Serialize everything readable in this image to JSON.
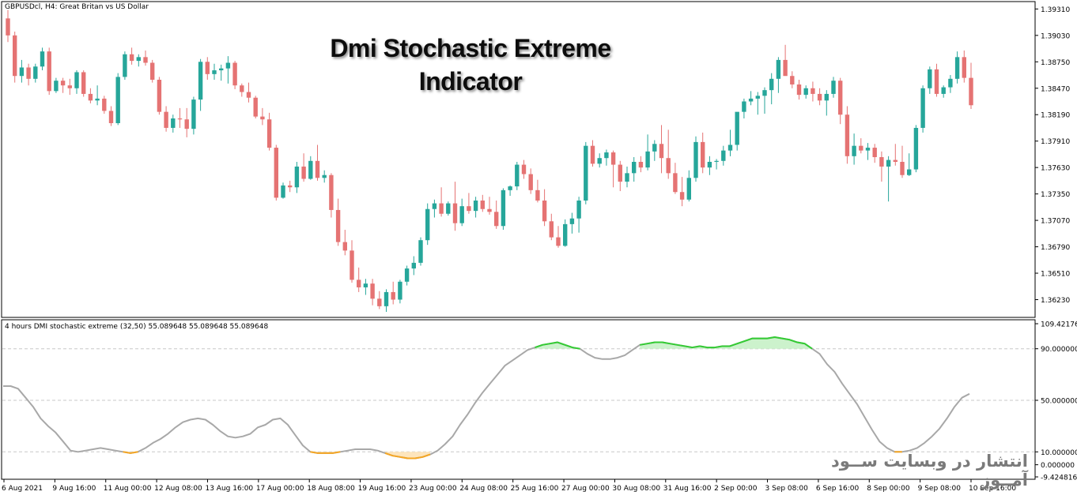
{
  "header": {
    "symbol_label": "GBPUSDcl, H4:  Great Britan vs US Dollar",
    "indicator_label": "4 hours DMI stochastic extreme (32,50) 55.089648 55.089648 55.089648"
  },
  "overlay": {
    "title_line1": "Dmi Stochastic Extreme",
    "title_line2": "Indicator",
    "watermark": "انتشار در وبسایت ســود آمــوز"
  },
  "colors": {
    "bull": "#26a69a",
    "bear": "#e57373",
    "osc_line": "#a8a8a8",
    "overbought": "#33cc33",
    "overbought_fill": "#ccf2cc",
    "oversold": "#f5a623",
    "oversold_fill": "#fde5bd",
    "level_line": "#c8c8c8",
    "frame": "#000000"
  },
  "chart_data": [
    {
      "type": "candlestick",
      "symbol": "GBPUSDcl",
      "timeframe": "H4",
      "ylim": [
        1.3605,
        1.3938
      ],
      "y_ticks": [
        "1.39310",
        "1.39030",
        "1.38750",
        "1.38470",
        "1.38190",
        "1.37910",
        "1.37630",
        "1.37350",
        "1.37070",
        "1.36790",
        "1.36510",
        "1.36230"
      ],
      "x_ticks": [
        "6 Aug 2021",
        "9 Aug 16:00",
        "11 Aug 00:00",
        "12 Aug 08:00",
        "13 Aug 16:00",
        "17 Aug 00:00",
        "18 Aug 08:00",
        "19 Aug 16:00",
        "23 Aug 00:00",
        "24 Aug 08:00",
        "25 Aug 16:00",
        "27 Aug 00:00",
        "30 Aug 08:00",
        "31 Aug 16:00",
        "2 Sep 00:00",
        "3 Sep 08:00",
        "6 Sep 16:00",
        "8 Sep 00:00",
        "9 Sep 08:00",
        "10 Sep 16:00"
      ],
      "ohlc": [
        [
          1.3921,
          1.393,
          1.3896,
          1.3903
        ],
        [
          1.3903,
          1.3907,
          1.3853,
          1.386
        ],
        [
          1.386,
          1.3877,
          1.3853,
          1.3869
        ],
        [
          1.3869,
          1.3873,
          1.385,
          1.3857
        ],
        [
          1.3857,
          1.3873,
          1.3853,
          1.387
        ],
        [
          1.387,
          1.389,
          1.3866,
          1.3886
        ],
        [
          1.3886,
          1.389,
          1.384,
          1.3844
        ],
        [
          1.3844,
          1.3858,
          1.3842,
          1.3855
        ],
        [
          1.3855,
          1.3858,
          1.3842,
          1.385
        ],
        [
          1.385,
          1.3857,
          1.384,
          1.3847
        ],
        [
          1.3847,
          1.3866,
          1.3841,
          1.3864
        ],
        [
          1.3864,
          1.3866,
          1.3838,
          1.3841
        ],
        [
          1.3841,
          1.3847,
          1.3831,
          1.3834
        ],
        [
          1.3834,
          1.385,
          1.3829,
          1.3836
        ],
        [
          1.3836,
          1.3839,
          1.382,
          1.3823
        ],
        [
          1.3823,
          1.3828,
          1.3807,
          1.381
        ],
        [
          1.381,
          1.3863,
          1.3808,
          1.3859
        ],
        [
          1.3859,
          1.3886,
          1.3856,
          1.3883
        ],
        [
          1.3883,
          1.389,
          1.3872,
          1.3876
        ],
        [
          1.3876,
          1.3883,
          1.387,
          1.388
        ],
        [
          1.388,
          1.3887,
          1.3871,
          1.3874
        ],
        [
          1.3874,
          1.3877,
          1.3853,
          1.3856
        ],
        [
          1.3856,
          1.3859,
          1.3819,
          1.3822
        ],
        [
          1.3822,
          1.3828,
          1.3801,
          1.3805
        ],
        [
          1.3805,
          1.3819,
          1.38,
          1.3815
        ],
        [
          1.3815,
          1.3826,
          1.3805,
          1.3814
        ],
        [
          1.3814,
          1.3826,
          1.3795,
          1.3804
        ],
        [
          1.3804,
          1.3838,
          1.3798,
          1.3835
        ],
        [
          1.3835,
          1.3878,
          1.3823,
          1.3875
        ],
        [
          1.3875,
          1.388,
          1.3856,
          1.3862
        ],
        [
          1.3862,
          1.3873,
          1.3856,
          1.3866
        ],
        [
          1.3866,
          1.3872,
          1.3855,
          1.3868
        ],
        [
          1.3868,
          1.3881,
          1.3852,
          1.3874
        ],
        [
          1.3874,
          1.3876,
          1.3846,
          1.385
        ],
        [
          1.385,
          1.3852,
          1.3838,
          1.3843
        ],
        [
          1.3843,
          1.3853,
          1.3832,
          1.3837
        ],
        [
          1.3837,
          1.3839,
          1.3815,
          1.3817
        ],
        [
          1.3817,
          1.3826,
          1.3808,
          1.3814
        ],
        [
          1.3814,
          1.3821,
          1.3781,
          1.3784
        ],
        [
          1.3784,
          1.3787,
          1.3728,
          1.3731
        ],
        [
          1.3731,
          1.3747,
          1.373,
          1.3744
        ],
        [
          1.3744,
          1.3749,
          1.3737,
          1.3742
        ],
        [
          1.3742,
          1.3769,
          1.3736,
          1.3764
        ],
        [
          1.3764,
          1.3778,
          1.3748,
          1.3751
        ],
        [
          1.3751,
          1.3775,
          1.375,
          1.377
        ],
        [
          1.377,
          1.3787,
          1.3749,
          1.3752
        ],
        [
          1.3752,
          1.376,
          1.3747,
          1.3755
        ],
        [
          1.3755,
          1.3757,
          1.371,
          1.3718
        ],
        [
          1.3718,
          1.373,
          1.368,
          1.3684
        ],
        [
          1.3684,
          1.3697,
          1.367,
          1.3675
        ],
        [
          1.3675,
          1.3686,
          1.3641,
          1.3644
        ],
        [
          1.3644,
          1.3657,
          1.3631,
          1.3636
        ],
        [
          1.3636,
          1.3645,
          1.3628,
          1.364
        ],
        [
          1.364,
          1.3645,
          1.3617,
          1.3624
        ],
        [
          1.3624,
          1.3632,
          1.3613,
          1.3616
        ],
        [
          1.3616,
          1.3634,
          1.361,
          1.3631
        ],
        [
          1.3631,
          1.3642,
          1.3618,
          1.3623
        ],
        [
          1.3623,
          1.3644,
          1.3619,
          1.3642
        ],
        [
          1.3642,
          1.3659,
          1.3638,
          1.3656
        ],
        [
          1.3656,
          1.3669,
          1.3649,
          1.3662
        ],
        [
          1.3662,
          1.3689,
          1.3659,
          1.3686
        ],
        [
          1.3686,
          1.3725,
          1.3681,
          1.3719
        ],
        [
          1.3719,
          1.3729,
          1.371,
          1.3725
        ],
        [
          1.3725,
          1.3742,
          1.3711,
          1.3714
        ],
        [
          1.3714,
          1.3727,
          1.3712,
          1.3725
        ],
        [
          1.3725,
          1.3748,
          1.3696,
          1.3704
        ],
        [
          1.3704,
          1.373,
          1.3701,
          1.3722
        ],
        [
          1.3722,
          1.3736,
          1.3714,
          1.3717
        ],
        [
          1.3717,
          1.3732,
          1.371,
          1.3728
        ],
        [
          1.3728,
          1.3734,
          1.3716,
          1.3719
        ],
        [
          1.3719,
          1.3732,
          1.3713,
          1.3716
        ],
        [
          1.3716,
          1.3728,
          1.3698,
          1.3701
        ],
        [
          1.3701,
          1.3741,
          1.3697,
          1.3739
        ],
        [
          1.3739,
          1.3744,
          1.3733,
          1.3743
        ],
        [
          1.3743,
          1.3769,
          1.3739,
          1.3766
        ],
        [
          1.3766,
          1.3771,
          1.3751,
          1.3756
        ],
        [
          1.3756,
          1.3762,
          1.3735,
          1.3739
        ],
        [
          1.3739,
          1.375,
          1.3726,
          1.3728
        ],
        [
          1.3728,
          1.374,
          1.3701,
          1.3706
        ],
        [
          1.3706,
          1.3714,
          1.3686,
          1.3689
        ],
        [
          1.3689,
          1.3701,
          1.3678,
          1.368
        ],
        [
          1.368,
          1.3708,
          1.3679,
          1.3703
        ],
        [
          1.3703,
          1.3715,
          1.3693,
          1.3709
        ],
        [
          1.3709,
          1.3732,
          1.3694,
          1.3728
        ],
        [
          1.3728,
          1.379,
          1.3724,
          1.3786
        ],
        [
          1.3786,
          1.3792,
          1.3764,
          1.3767
        ],
        [
          1.3767,
          1.3778,
          1.3763,
          1.3773
        ],
        [
          1.3773,
          1.3782,
          1.3765,
          1.3779
        ],
        [
          1.3779,
          1.3781,
          1.3742,
          1.3766
        ],
        [
          1.3766,
          1.377,
          1.3738,
          1.3748
        ],
        [
          1.3748,
          1.3764,
          1.3742,
          1.3757
        ],
        [
          1.3757,
          1.3774,
          1.3748,
          1.3769
        ],
        [
          1.3769,
          1.3775,
          1.3758,
          1.3763
        ],
        [
          1.3763,
          1.3798,
          1.376,
          1.378
        ],
        [
          1.378,
          1.3792,
          1.377,
          1.3788
        ],
        [
          1.3788,
          1.3808,
          1.3757,
          1.3773
        ],
        [
          1.3773,
          1.3803,
          1.3751,
          1.3757
        ],
        [
          1.3757,
          1.3768,
          1.3735,
          1.3737
        ],
        [
          1.3737,
          1.3753,
          1.3722,
          1.3729
        ],
        [
          1.3729,
          1.376,
          1.3727,
          1.3752
        ],
        [
          1.3752,
          1.3796,
          1.3748,
          1.379
        ],
        [
          1.379,
          1.38,
          1.3757,
          1.3763
        ],
        [
          1.3763,
          1.3775,
          1.3755,
          1.3769
        ],
        [
          1.3769,
          1.3772,
          1.3761,
          1.377
        ],
        [
          1.377,
          1.3786,
          1.3765,
          1.3781
        ],
        [
          1.3781,
          1.3803,
          1.3775,
          1.3787
        ],
        [
          1.3787,
          1.382,
          1.3781,
          1.3822
        ],
        [
          1.3822,
          1.3836,
          1.3815,
          1.3833
        ],
        [
          1.3833,
          1.3844,
          1.3829,
          1.3836
        ],
        [
          1.3836,
          1.3843,
          1.3819,
          1.3839
        ],
        [
          1.3839,
          1.3848,
          1.382,
          1.3845
        ],
        [
          1.3845,
          1.3863,
          1.383,
          1.3857
        ],
        [
          1.3857,
          1.388,
          1.3842,
          1.3877
        ],
        [
          1.3877,
          1.3893,
          1.3861,
          1.386
        ],
        [
          1.386,
          1.3865,
          1.3847,
          1.3851
        ],
        [
          1.3851,
          1.3856,
          1.3835,
          1.384
        ],
        [
          1.384,
          1.385,
          1.3836,
          1.3847
        ],
        [
          1.3847,
          1.3854,
          1.3833,
          1.3841
        ],
        [
          1.3841,
          1.3847,
          1.3829,
          1.3834
        ],
        [
          1.3834,
          1.3845,
          1.3818,
          1.3841
        ],
        [
          1.3841,
          1.3859,
          1.3837,
          1.3855
        ],
        [
          1.3855,
          1.3858,
          1.3809,
          1.3819
        ],
        [
          1.3819,
          1.3828,
          1.3767,
          1.3775
        ],
        [
          1.3775,
          1.3799,
          1.3766,
          1.3786
        ],
        [
          1.3786,
          1.3794,
          1.3778,
          1.3781
        ],
        [
          1.3781,
          1.3789,
          1.3771,
          1.3784
        ],
        [
          1.3784,
          1.3788,
          1.3768,
          1.3774
        ],
        [
          1.3774,
          1.378,
          1.3748,
          1.3764
        ],
        [
          1.3764,
          1.3775,
          1.3727,
          1.3771
        ],
        [
          1.3771,
          1.3788,
          1.3765,
          1.3769
        ],
        [
          1.3769,
          1.3786,
          1.3752,
          1.3755
        ],
        [
          1.3755,
          1.3778,
          1.3754,
          1.3761
        ],
        [
          1.3761,
          1.3808,
          1.3758,
          1.3805
        ],
        [
          1.3805,
          1.385,
          1.38,
          1.3847
        ],
        [
          1.3847,
          1.387,
          1.3841,
          1.3867
        ],
        [
          1.3867,
          1.3873,
          1.3838,
          1.3841
        ],
        [
          1.3841,
          1.385,
          1.3837,
          1.3848
        ],
        [
          1.3848,
          1.3861,
          1.3842,
          1.3857
        ],
        [
          1.3857,
          1.3886,
          1.3852,
          1.388
        ],
        [
          1.388,
          1.3887,
          1.3853,
          1.3858
        ],
        [
          1.3858,
          1.3874,
          1.3825,
          1.3829
        ]
      ]
    },
    {
      "type": "line",
      "name": "4 hours DMI stochastic extreme",
      "ylim": [
        -9.424816,
        109.421763
      ],
      "y_ticks": [
        "109.421763",
        "90.000000",
        "50.000000",
        "10.000000",
        "0.000000",
        "-9.424816"
      ],
      "levels": [
        90,
        50,
        10
      ],
      "values": [
        61,
        61,
        59,
        52,
        45,
        36,
        30,
        25,
        18,
        11,
        10,
        11,
        12,
        13,
        12,
        11,
        10,
        9,
        10,
        13,
        17,
        20,
        24,
        29,
        33,
        35,
        36,
        35,
        31,
        26,
        22,
        21,
        22,
        24,
        29,
        31,
        35,
        36,
        31,
        23,
        15,
        10,
        9,
        9,
        9,
        10,
        11,
        12,
        12,
        12,
        11,
        9,
        7,
        6,
        5,
        5,
        6,
        8,
        11,
        16,
        22,
        31,
        39,
        48,
        56,
        63,
        70,
        77,
        81,
        85,
        89,
        91,
        93,
        94,
        95,
        93,
        91,
        90,
        86,
        83,
        82,
        82,
        83,
        85,
        89,
        93,
        94,
        95,
        95,
        94,
        93,
        92,
        91,
        92,
        91,
        91,
        92,
        92,
        94,
        96,
        98,
        98,
        98,
        99,
        98,
        97,
        95,
        94,
        90,
        86,
        78,
        72,
        63,
        55,
        47,
        37,
        27,
        18,
        13,
        10,
        10,
        11,
        13,
        17,
        22,
        28,
        36,
        45,
        52,
        55
      ]
    }
  ]
}
